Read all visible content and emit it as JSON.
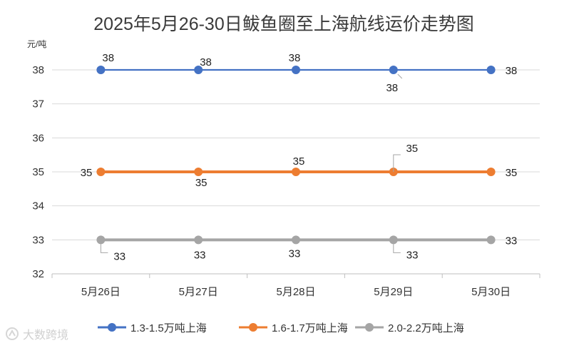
{
  "chart_data": {
    "type": "line",
    "title": "2025年5月26-30日鲅鱼圈至上海航线运价走势图",
    "unit_label": "元/吨",
    "categories": [
      "5月26日",
      "5月27日",
      "5月28日",
      "5月29日",
      "5月30日"
    ],
    "ylim": [
      32,
      38
    ],
    "yticks": [
      32,
      33,
      34,
      35,
      36,
      37,
      38
    ],
    "grid": true,
    "legend_position": "bottom",
    "series": [
      {
        "name": "1.3-1.5万吨上海",
        "color": "#4472c4",
        "values": [
          38,
          38,
          38,
          38,
          38
        ]
      },
      {
        "name": "1.6-1.7万吨上海",
        "color": "#ed7d31",
        "values": [
          35,
          35,
          35,
          35,
          35
        ]
      },
      {
        "name": "2.0-2.2万吨上海",
        "color": "#a5a5a5",
        "values": [
          33,
          33,
          33,
          33,
          33
        ]
      }
    ]
  },
  "watermark": {
    "text": "大数跨境",
    "icon": "brand-logo-icon"
  }
}
